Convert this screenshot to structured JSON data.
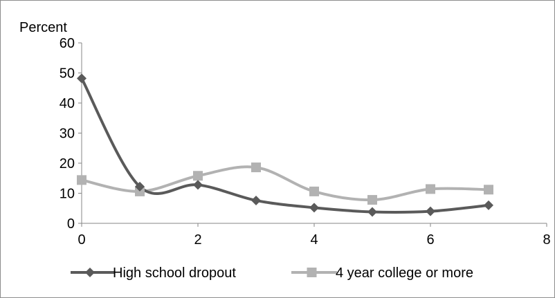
{
  "chart_data": {
    "type": "line",
    "title": "",
    "xlabel": "",
    "ylabel": "Percent",
    "xlim": [
      0,
      8
    ],
    "ylim": [
      0,
      60
    ],
    "x_ticks": [
      0,
      2,
      4,
      6,
      8
    ],
    "y_ticks": [
      0,
      10,
      20,
      30,
      40,
      50,
      60
    ],
    "grid": false,
    "legend_position": "bottom",
    "series": [
      {
        "name": "High school dropout",
        "color": "#5a5a5a",
        "marker": "diamond",
        "x": [
          0,
          1,
          2,
          3,
          4,
          5,
          6,
          7
        ],
        "y": [
          48.2,
          12.2,
          12.8,
          7.6,
          5.2,
          3.8,
          4.0,
          6.0
        ]
      },
      {
        "name": "4 year college or more",
        "color": "#b2b2b2",
        "marker": "square",
        "x": [
          0,
          1,
          2,
          3,
          4,
          5,
          6,
          7
        ],
        "y": [
          14.4,
          10.6,
          15.8,
          18.6,
          10.6,
          7.8,
          11.4,
          11.2
        ]
      }
    ]
  }
}
